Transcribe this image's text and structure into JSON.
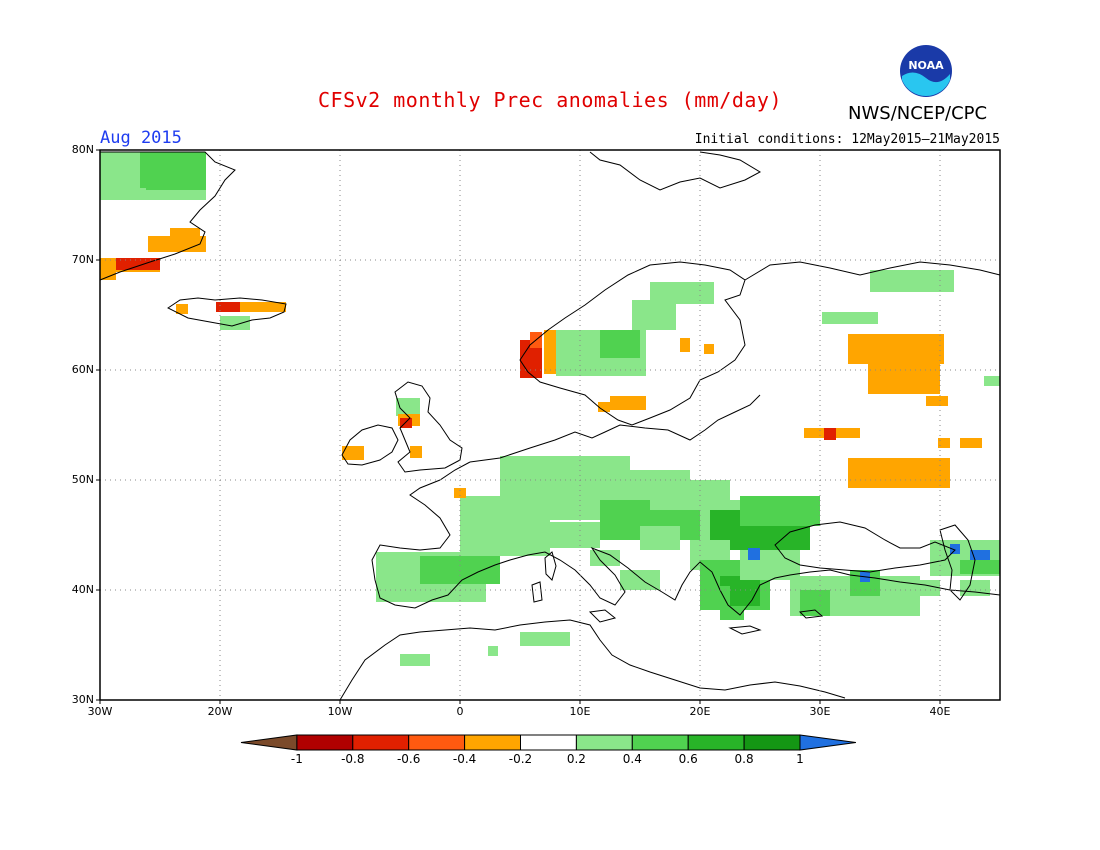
{
  "header": {
    "title": "CFSv2 monthly Prec anomalies (mm/day)",
    "agency": "NWS/NCEP/CPC",
    "month": "Aug 2015",
    "initial_conditions": "Initial conditions: 12May2015–21May2015"
  },
  "axes": {
    "lat_labels": [
      "80N",
      "70N",
      "60N",
      "50N",
      "40N",
      "30N"
    ],
    "lon_labels": [
      "30W",
      "20W",
      "10W",
      "0",
      "10E",
      "20E",
      "30E",
      "40E"
    ]
  },
  "colorbar": {
    "labels": [
      "-1",
      "-0.8",
      "-0.6",
      "-0.4",
      "-0.2",
      "0.2",
      "0.4",
      "0.6",
      "0.8",
      "1"
    ],
    "colors": [
      "#7b4a2a",
      "#b00000",
      "#e02000",
      "#ff5a10",
      "#ffa500",
      "#ffffff",
      "#8ae68a",
      "#50d250",
      "#28b428",
      "#149614",
      "#2070e0"
    ]
  },
  "colors": {
    "title": "#e00000",
    "month": "#1e3cf0",
    "land_outline": "#000000",
    "grid": "#888888"
  }
}
